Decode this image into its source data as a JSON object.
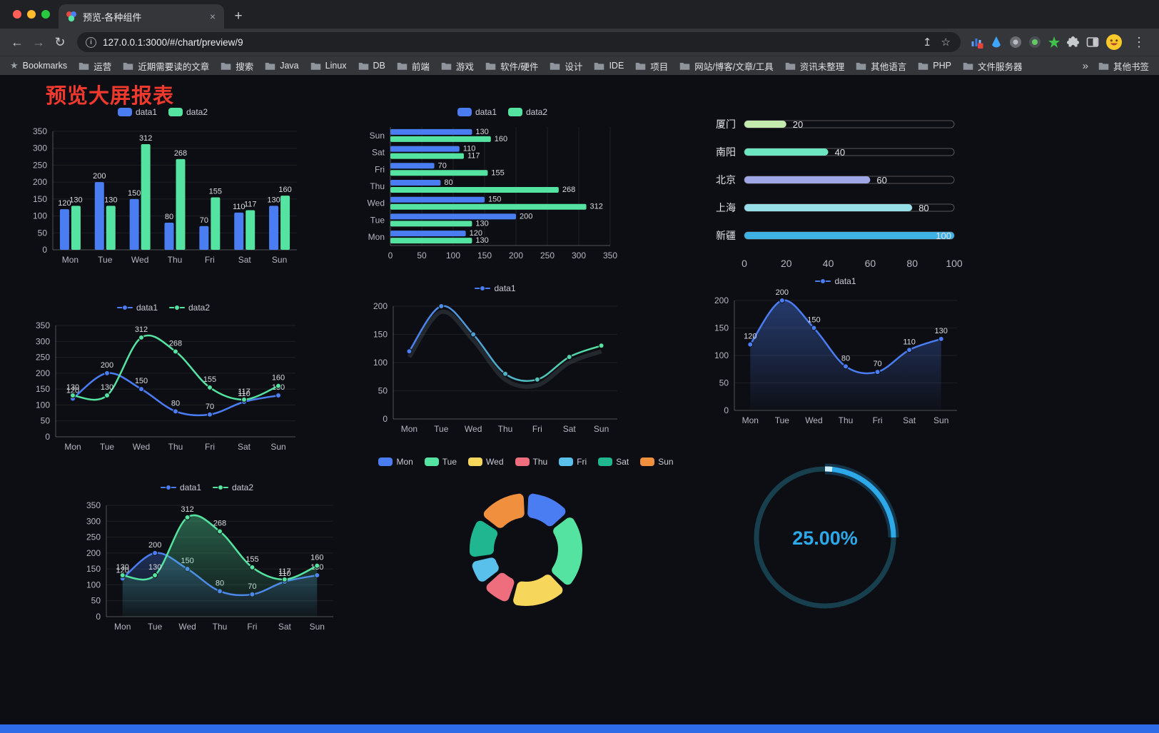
{
  "browser": {
    "tab": {
      "title": "预览-各种组件"
    },
    "new_tab_icon": "+",
    "close_tab_icon": "×",
    "nav": {
      "back_icon": "←",
      "forward_icon": "→",
      "reload_icon": "↻"
    },
    "omnibox": {
      "info_icon": "i",
      "url": "127.0.0.1:3000/#/chart/preview/9",
      "share_icon": "↥",
      "bookmark_icon": "☆"
    },
    "menu_icon": "⋮",
    "bookmarks_bar": {
      "star_icon": "★",
      "first_label": "Bookmarks",
      "folders": [
        "运营",
        "近期需要读的文章",
        "搜索",
        "Java",
        "Linux",
        "DB",
        "前端",
        "游戏",
        "软件/硬件",
        "设计",
        "IDE",
        "项目",
        "网站/博客/文章/工具",
        "资讯未整理",
        "其他语言",
        "PHP",
        "文件服务器"
      ],
      "overflow_icon": "»",
      "other_bookmarks_label": "其他书签"
    }
  },
  "page": {
    "title": "预览大屏报表",
    "title_color": "#f0392e",
    "footer_color": "#2d6ce6",
    "background": "#0d0e13"
  },
  "chart_data": [
    {
      "id": "bar-grouped",
      "type": "bar",
      "legend": [
        "data1",
        "data2"
      ],
      "legend_position": "top",
      "categories": [
        "Mon",
        "Tue",
        "Wed",
        "Thu",
        "Fri",
        "Sat",
        "Sun"
      ],
      "series": [
        {
          "name": "data1",
          "color": "#4a7df2",
          "values": [
            120,
            200,
            150,
            80,
            70,
            110,
            130
          ],
          "labels": true
        },
        {
          "name": "data2",
          "color": "#54e3a1",
          "values": [
            130,
            130,
            312,
            268,
            155,
            117,
            160
          ],
          "labels": true
        }
      ],
      "ylim": [
        0,
        350
      ],
      "yticks": [
        0,
        50,
        100,
        150,
        200,
        250,
        300,
        350
      ],
      "grid": true
    },
    {
      "id": "bar-horizontal",
      "type": "bar-horizontal",
      "legend": [
        "data1",
        "data2"
      ],
      "legend_position": "top",
      "categories": [
        "Mon",
        "Tue",
        "Wed",
        "Thu",
        "Fri",
        "Sat",
        "Sun"
      ],
      "series": [
        {
          "name": "data1",
          "color": "#4a7df2",
          "values": [
            120,
            200,
            150,
            80,
            70,
            110,
            130
          ],
          "labels": true
        },
        {
          "name": "data2",
          "color": "#54e3a1",
          "values": [
            130,
            130,
            312,
            268,
            155,
            117,
            160
          ],
          "labels": true
        }
      ],
      "xlim": [
        0,
        350
      ],
      "xticks": [
        0,
        50,
        100,
        150,
        200,
        250,
        300,
        350
      ],
      "grid": true
    },
    {
      "id": "city-progress",
      "type": "progress",
      "categories": [
        "厦门",
        "南阳",
        "北京",
        "上海",
        "新疆"
      ],
      "values": [
        20,
        40,
        60,
        80,
        100
      ],
      "colors": [
        "#c4ebad",
        "#6be6c1",
        "#a0a7e6",
        "#96dee8",
        "#3fb1e3"
      ],
      "xlim": [
        0,
        100
      ],
      "xticks": [
        0,
        20,
        40,
        60,
        80,
        100
      ]
    },
    {
      "id": "line-double",
      "type": "line",
      "smooth": true,
      "legend": [
        "data1",
        "data2"
      ],
      "legend_position": "top",
      "categories": [
        "Mon",
        "Tue",
        "Wed",
        "Thu",
        "Fri",
        "Sat",
        "Sun"
      ],
      "series": [
        {
          "name": "data1",
          "color": "#4a7df2",
          "values": [
            120,
            200,
            150,
            80,
            70,
            110,
            130
          ],
          "labels": true
        },
        {
          "name": "data2",
          "color": "#54e3a1",
          "values": [
            130,
            130,
            312,
            268,
            155,
            117,
            160
          ],
          "labels": true
        }
      ],
      "ylim": [
        0,
        350
      ],
      "yticks": [
        0,
        50,
        100,
        150,
        200,
        250,
        300,
        350
      ],
      "grid": true
    },
    {
      "id": "line-gradient",
      "type": "line",
      "smooth": true,
      "legend": [
        "data1"
      ],
      "legend_position": "top",
      "categories": [
        "Mon",
        "Tue",
        "Wed",
        "Thu",
        "Fri",
        "Sat",
        "Sun"
      ],
      "series": [
        {
          "name": "data1",
          "colors": [
            "#4a7df2",
            "#54e3a1"
          ],
          "values": [
            120,
            200,
            150,
            80,
            70,
            110,
            130
          ],
          "labels": false,
          "shadow": true
        }
      ],
      "ylim": [
        0,
        200
      ],
      "yticks": [
        0,
        50,
        100,
        150,
        200
      ],
      "grid": true
    },
    {
      "id": "line-area",
      "type": "area",
      "smooth": true,
      "legend": [
        "data1"
      ],
      "legend_position": "top",
      "categories": [
        "Mon",
        "Tue",
        "Wed",
        "Thu",
        "Fri",
        "Sat",
        "Sun"
      ],
      "series": [
        {
          "name": "data1",
          "color": "#4a7df2",
          "values": [
            120,
            200,
            150,
            80,
            70,
            110,
            130
          ],
          "labels": true,
          "area": [
            "rgba(74,125,242,0.40)",
            "rgba(74,125,242,0.02)"
          ]
        }
      ],
      "ylim": [
        0,
        200
      ],
      "yticks": [
        0,
        50,
        100,
        150,
        200
      ],
      "grid": true
    },
    {
      "id": "line-area-double",
      "type": "area",
      "smooth": true,
      "legend": [
        "data1",
        "data2"
      ],
      "legend_position": "top",
      "categories": [
        "Mon",
        "Tue",
        "Wed",
        "Thu",
        "Fri",
        "Sat",
        "Sun"
      ],
      "series": [
        {
          "name": "data1",
          "color": "#4a7df2",
          "values": [
            120,
            200,
            150,
            80,
            70,
            110,
            130
          ],
          "labels": true,
          "area": [
            "rgba(74,125,242,0.30)",
            "rgba(74,125,242,0.02)"
          ]
        },
        {
          "name": "data2",
          "color": "#54e3a1",
          "values": [
            130,
            130,
            312,
            268,
            155,
            117,
            160
          ],
          "labels": true,
          "area": [
            "rgba(84,227,161,0.38)",
            "rgba(84,227,161,0.03)"
          ]
        }
      ],
      "ylim": [
        0,
        350
      ],
      "yticks": [
        0,
        50,
        100,
        150,
        200,
        250,
        300,
        350
      ],
      "grid": true
    },
    {
      "id": "pie-days",
      "type": "doughnut",
      "legend": [
        "Mon",
        "Tue",
        "Wed",
        "Thu",
        "Fri",
        "Sat",
        "Sun"
      ],
      "legend_position": "top",
      "categories": [
        "Mon",
        "Tue",
        "Wed",
        "Thu",
        "Fri",
        "Sat",
        "Sun"
      ],
      "values": [
        120,
        200,
        150,
        80,
        70,
        110,
        130
      ],
      "colors": [
        "#4a7df2",
        "#54e3a1",
        "#f7d65c",
        "#ee6e7e",
        "#58c0ea",
        "#1fb690",
        "#f0903f"
      ]
    },
    {
      "id": "gauge-percent",
      "type": "gauge",
      "value": 25,
      "label": "25.00%",
      "color": "#2da9ea",
      "track_color": "#173f4e"
    }
  ]
}
